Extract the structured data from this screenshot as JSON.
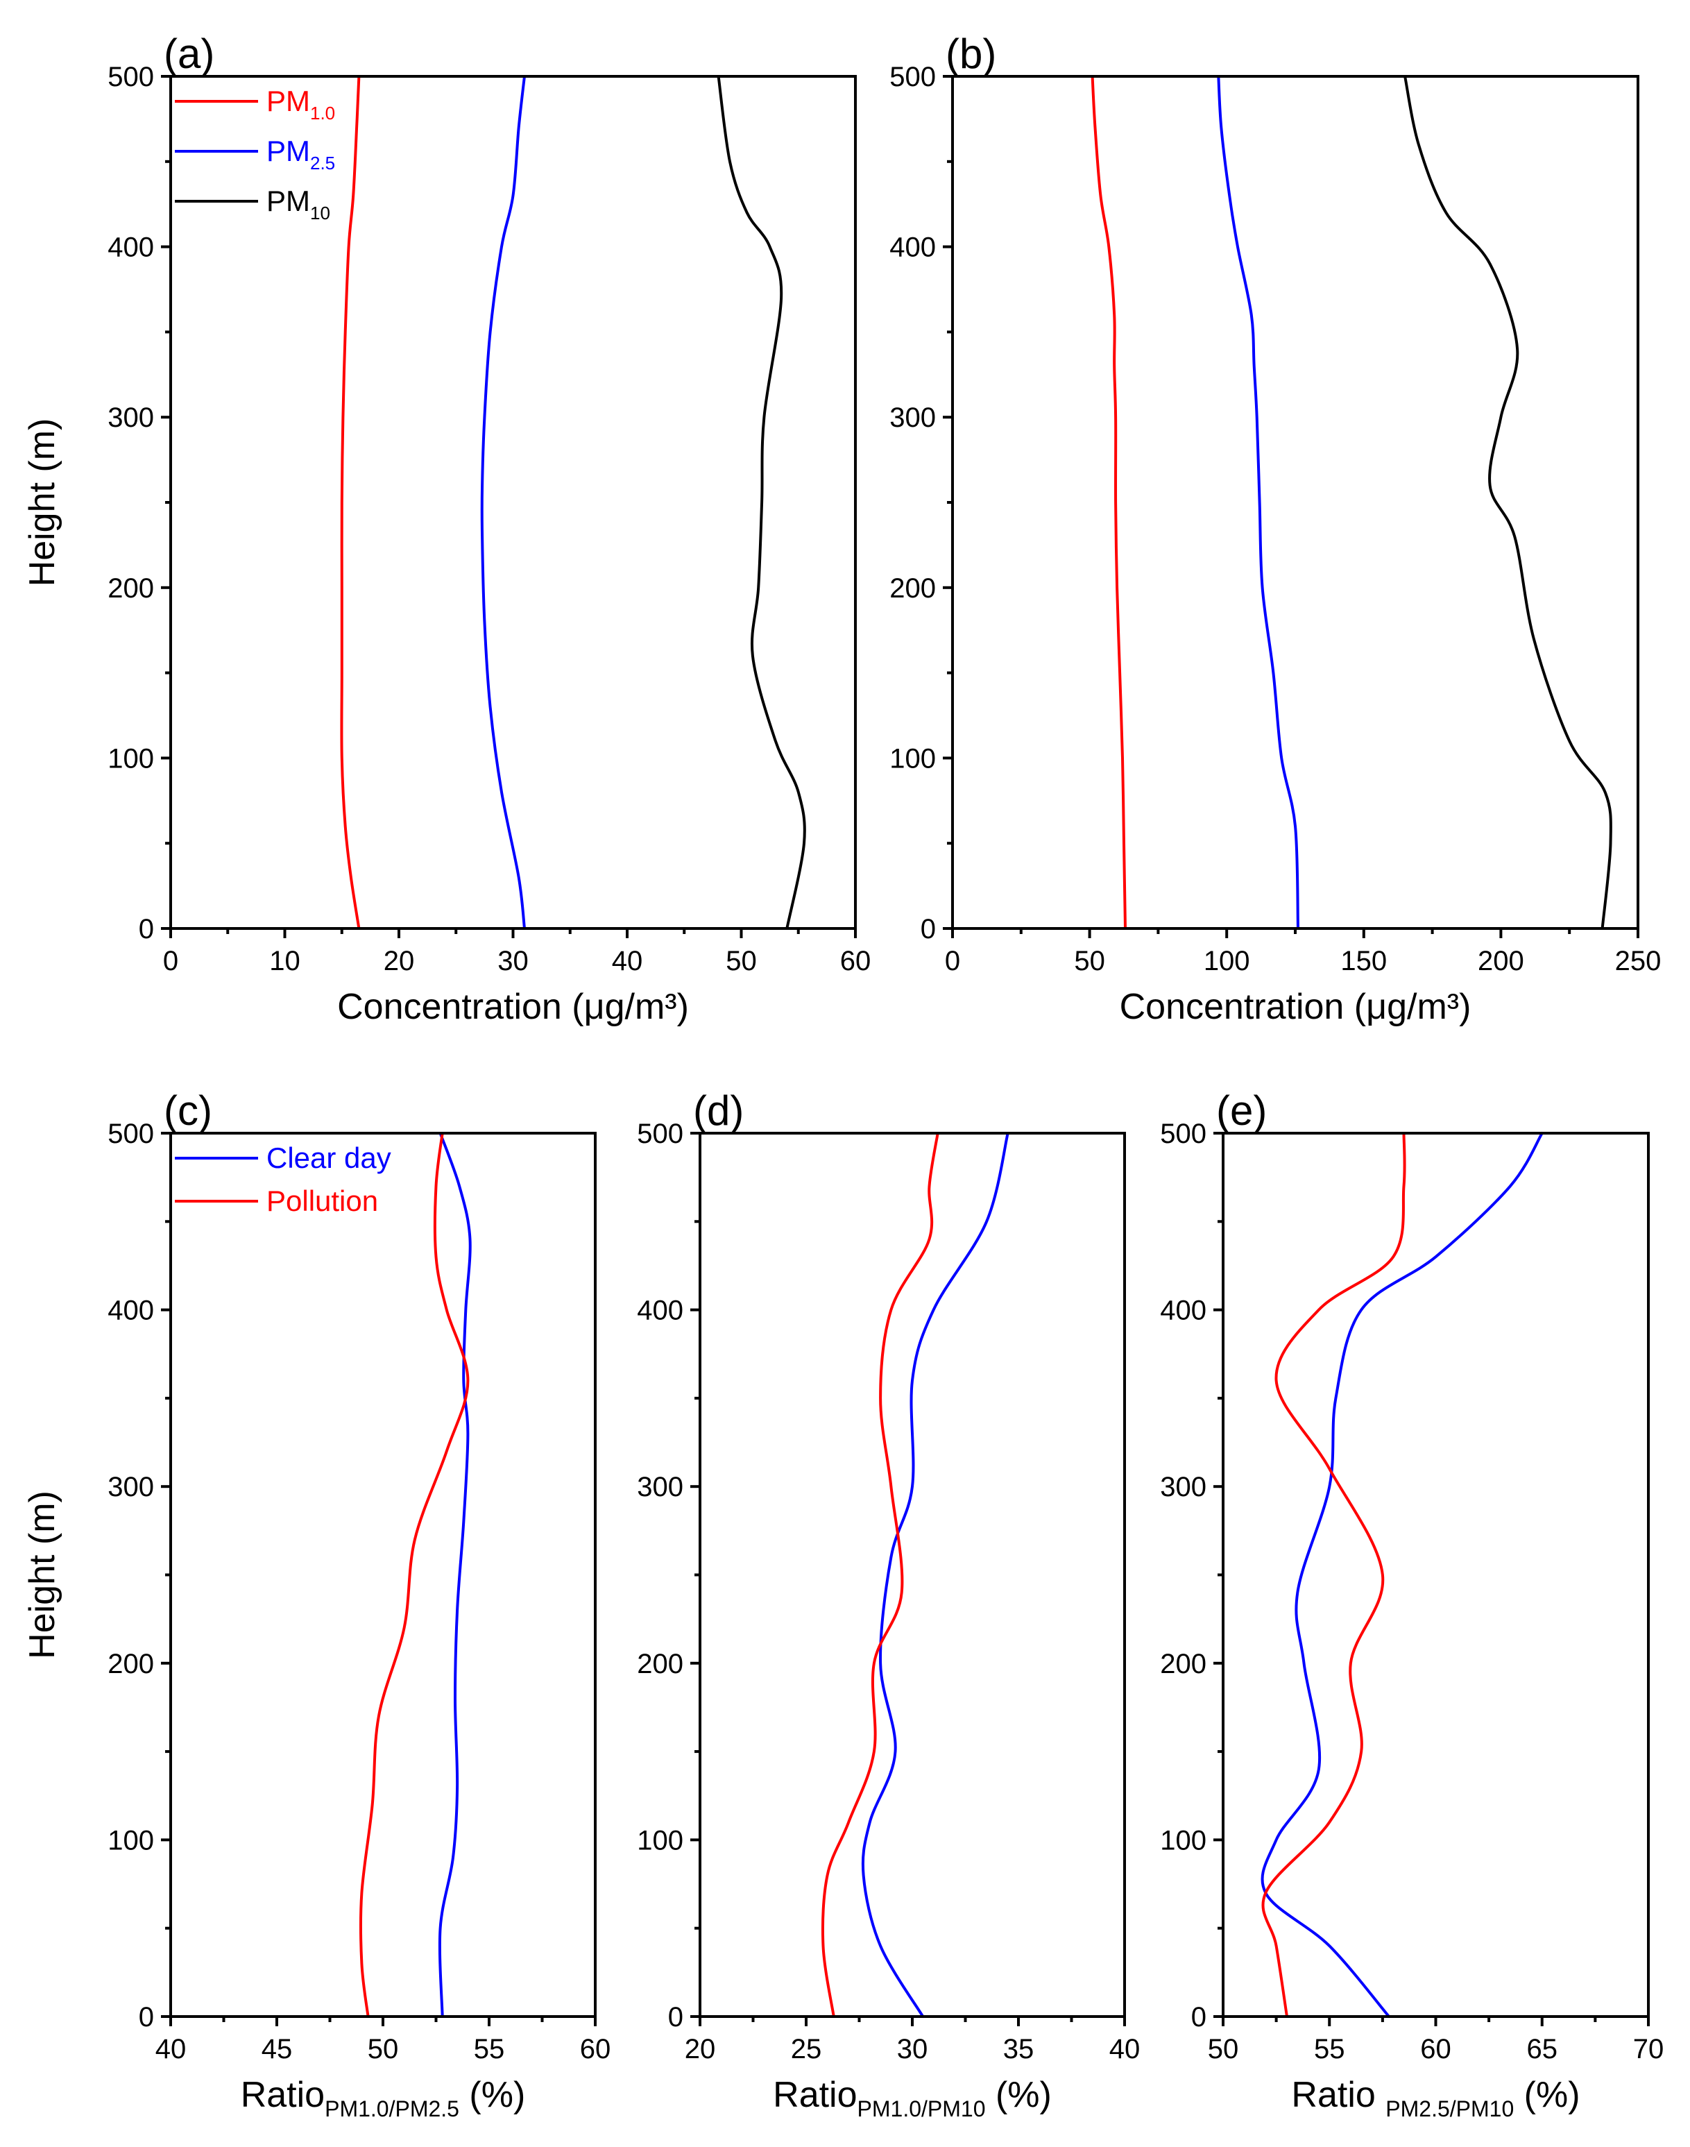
{
  "colors": {
    "red": "#ff0000",
    "blue": "#0000ff",
    "black": "#000000"
  },
  "chart_data": [
    {
      "id": "a",
      "type": "line",
      "panel_label": "(a)",
      "xlabel": "Concentration (μg/m³)",
      "ylabel": "Height (m)",
      "xlim": [
        0,
        60
      ],
      "ylim": [
        0,
        500
      ],
      "xticks": [
        0,
        10,
        20,
        30,
        40,
        50,
        60
      ],
      "yticks": [
        0,
        100,
        200,
        300,
        400,
        500
      ],
      "legend": {
        "placement": "top-left"
      },
      "series": [
        {
          "name": "PM",
          "sub": "1.0",
          "color": "#ff0000",
          "x": [
            16.5,
            15.8,
            15.3,
            15.0,
            15.0,
            15.0,
            15.0,
            15.1,
            15.3,
            15.6,
            16.0,
            16.3,
            16.5
          ],
          "y": [
            0,
            30,
            60,
            100,
            150,
            200,
            250,
            300,
            350,
            400,
            430,
            470,
            500
          ]
        },
        {
          "name": "PM",
          "sub": "2.5",
          "color": "#0000ff",
          "x": [
            31.0,
            30.5,
            29.0,
            28.0,
            27.5,
            27.3,
            27.3,
            27.5,
            28.0,
            29.0,
            30.0,
            30.5,
            31.0
          ],
          "y": [
            0,
            30,
            80,
            130,
            180,
            230,
            260,
            300,
            350,
            400,
            430,
            470,
            500
          ]
        },
        {
          "name": "PM",
          "sub": "10",
          "color": "#000000",
          "x": [
            54.0,
            55.5,
            55.0,
            53.0,
            51.0,
            51.5,
            51.8,
            52.0,
            53.5,
            52.5,
            50.5,
            49.0,
            48.0
          ],
          "y": [
            0,
            50,
            80,
            110,
            160,
            200,
            250,
            300,
            370,
            400,
            420,
            450,
            500
          ]
        }
      ]
    },
    {
      "id": "b",
      "type": "line",
      "panel_label": "(b)",
      "xlabel": "Concentration (μg/m³)",
      "ylabel": "",
      "xlim": [
        0,
        250
      ],
      "ylim": [
        0,
        500
      ],
      "xticks": [
        0,
        50,
        100,
        150,
        200,
        250
      ],
      "yticks": [
        0,
        100,
        200,
        300,
        400,
        500
      ],
      "series": [
        {
          "name": "PM1.0",
          "color": "#ff0000",
          "x": [
            63,
            62.5,
            62,
            61,
            60,
            59.5,
            59.5,
            59,
            59,
            57,
            54,
            52,
            51
          ],
          "y": [
            0,
            50,
            100,
            150,
            200,
            250,
            300,
            330,
            360,
            400,
            430,
            470,
            500
          ]
        },
        {
          "name": "PM2.5",
          "color": "#0000ff",
          "x": [
            126,
            125,
            120,
            117,
            113,
            112,
            111,
            110,
            109,
            104,
            101,
            98,
            97
          ],
          "y": [
            0,
            60,
            100,
            150,
            200,
            250,
            300,
            330,
            360,
            400,
            430,
            470,
            500
          ]
        },
        {
          "name": "PM10",
          "color": "#000000",
          "x": [
            237,
            240,
            238,
            225,
            212,
            205,
            196,
            200,
            206,
            196,
            180,
            170,
            165
          ],
          "y": [
            0,
            50,
            80,
            110,
            170,
            230,
            260,
            300,
            340,
            390,
            420,
            460,
            500
          ]
        }
      ]
    },
    {
      "id": "c",
      "type": "line",
      "panel_label": "(c)",
      "xlabel": "Ratio",
      "xlabel_sub": "PM1.0/PM2.5",
      "xlabel_tail": " (%)",
      "ylabel": "Height (m)",
      "xlim": [
        40,
        60
      ],
      "ylim": [
        0,
        500
      ],
      "xticks": [
        40,
        45,
        50,
        55,
        60
      ],
      "yticks": [
        0,
        100,
        200,
        300,
        400,
        500
      ],
      "legend": {
        "placement": "top-left"
      },
      "series": [
        {
          "name": "Clear day",
          "color": "#0000ff",
          "x": [
            52.8,
            52.7,
            53.3,
            53.5,
            53.4,
            53.5,
            53.8,
            54.0,
            53.8,
            53.9,
            54.1,
            53.6,
            52.7
          ],
          "y": [
            0,
            50,
            90,
            130,
            180,
            230,
            280,
            330,
            360,
            400,
            440,
            470,
            500
          ]
        },
        {
          "name": "Pollution",
          "color": "#ff0000",
          "x": [
            49.3,
            49.0,
            49.0,
            49.5,
            49.8,
            51.0,
            51.5,
            53.0,
            54.0,
            53.0,
            52.5,
            52.5,
            52.8
          ],
          "y": [
            0,
            30,
            70,
            120,
            170,
            220,
            270,
            320,
            360,
            400,
            430,
            470,
            500
          ]
        }
      ]
    },
    {
      "id": "d",
      "type": "line",
      "panel_label": "(d)",
      "xlabel": "Ratio",
      "xlabel_sub": "PM1.0/PM10",
      "xlabel_tail": " (%)",
      "ylabel": "",
      "xlim": [
        20,
        40
      ],
      "ylim": [
        0,
        500
      ],
      "xticks": [
        20,
        25,
        30,
        35,
        40
      ],
      "yticks": [
        0,
        100,
        200,
        300,
        400,
        500
      ],
      "series": [
        {
          "name": "Clear day",
          "color": "#0000ff",
          "x": [
            30.5,
            28.5,
            27.7,
            28.0,
            29.2,
            28.5,
            29.0,
            30.0,
            30.0,
            31.0,
            33.5,
            34.5
          ],
          "y": [
            0,
            40,
            80,
            110,
            150,
            200,
            260,
            300,
            360,
            400,
            450,
            500
          ]
        },
        {
          "name": "Pollution",
          "color": "#ff0000",
          "x": [
            26.3,
            25.8,
            26.0,
            27.0,
            28.2,
            28.2,
            29.5,
            29.0,
            28.5,
            29.0,
            30.8,
            30.8,
            31.2
          ],
          "y": [
            0,
            40,
            80,
            110,
            150,
            200,
            240,
            300,
            350,
            400,
            440,
            470,
            500
          ]
        }
      ]
    },
    {
      "id": "e",
      "type": "line",
      "panel_label": "(e)",
      "xlabel": "Ratio ",
      "xlabel_sub": "PM2.5/PM10",
      "xlabel_tail": " (%)",
      "ylabel": "",
      "xlim": [
        50,
        70
      ],
      "ylim": [
        0,
        500
      ],
      "xticks": [
        50,
        55,
        60,
        65,
        70
      ],
      "yticks": [
        0,
        100,
        200,
        300,
        400,
        500
      ],
      "series": [
        {
          "name": "Clear day",
          "color": "#0000ff",
          "x": [
            57.8,
            55.0,
            52.0,
            52.5,
            54.5,
            53.8,
            53.5,
            55.0,
            55.3,
            56.5,
            60.0,
            63.5,
            65.0
          ],
          "y": [
            0,
            40,
            70,
            100,
            140,
            200,
            240,
            300,
            350,
            400,
            430,
            470,
            500
          ]
        },
        {
          "name": "Pollution",
          "color": "#ff0000",
          "x": [
            53.0,
            52.5,
            52.0,
            55.0,
            56.5,
            56.0,
            57.5,
            55.0,
            52.5,
            54.5,
            58.0,
            58.5,
            58.5
          ],
          "y": [
            0,
            40,
            70,
            110,
            150,
            200,
            250,
            310,
            360,
            400,
            430,
            470,
            500
          ]
        }
      ]
    }
  ]
}
